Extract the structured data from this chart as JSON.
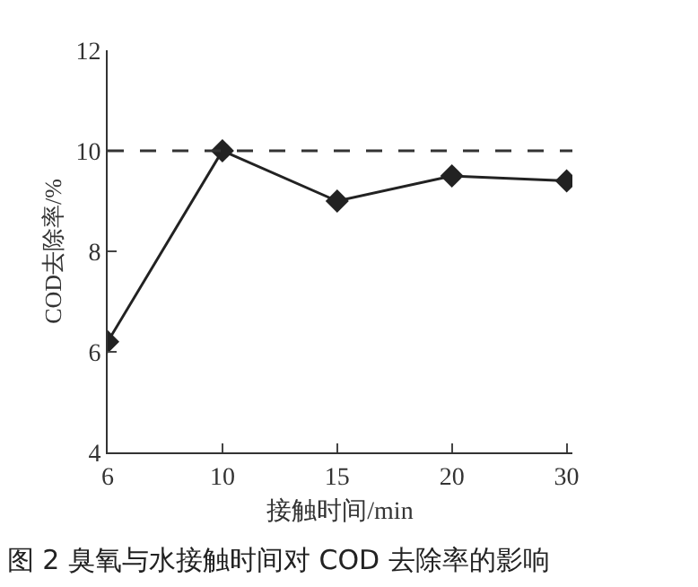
{
  "chart_data": {
    "type": "line",
    "title": "图 2 臭氧与水接触时间对 COD 去除率的影响",
    "xlabel": "接触时间/min",
    "ylabel": "COD去除率/%",
    "categories": [
      "6",
      "10",
      "15",
      "20",
      "30"
    ],
    "series": [
      {
        "color": "#222222",
        "values": [
          6.2,
          10.0,
          9.0,
          9.5,
          9.4
        ]
      }
    ],
    "ylim": [
      4,
      12
    ],
    "yticks": [
      4,
      6,
      8,
      10,
      12
    ],
    "ref_lines": [
      {
        "axis": "y",
        "value": 10,
        "line_style": "dashed",
        "color": "#333333"
      }
    ],
    "grid": false,
    "marker": "diamond",
    "line_style": "solid"
  }
}
